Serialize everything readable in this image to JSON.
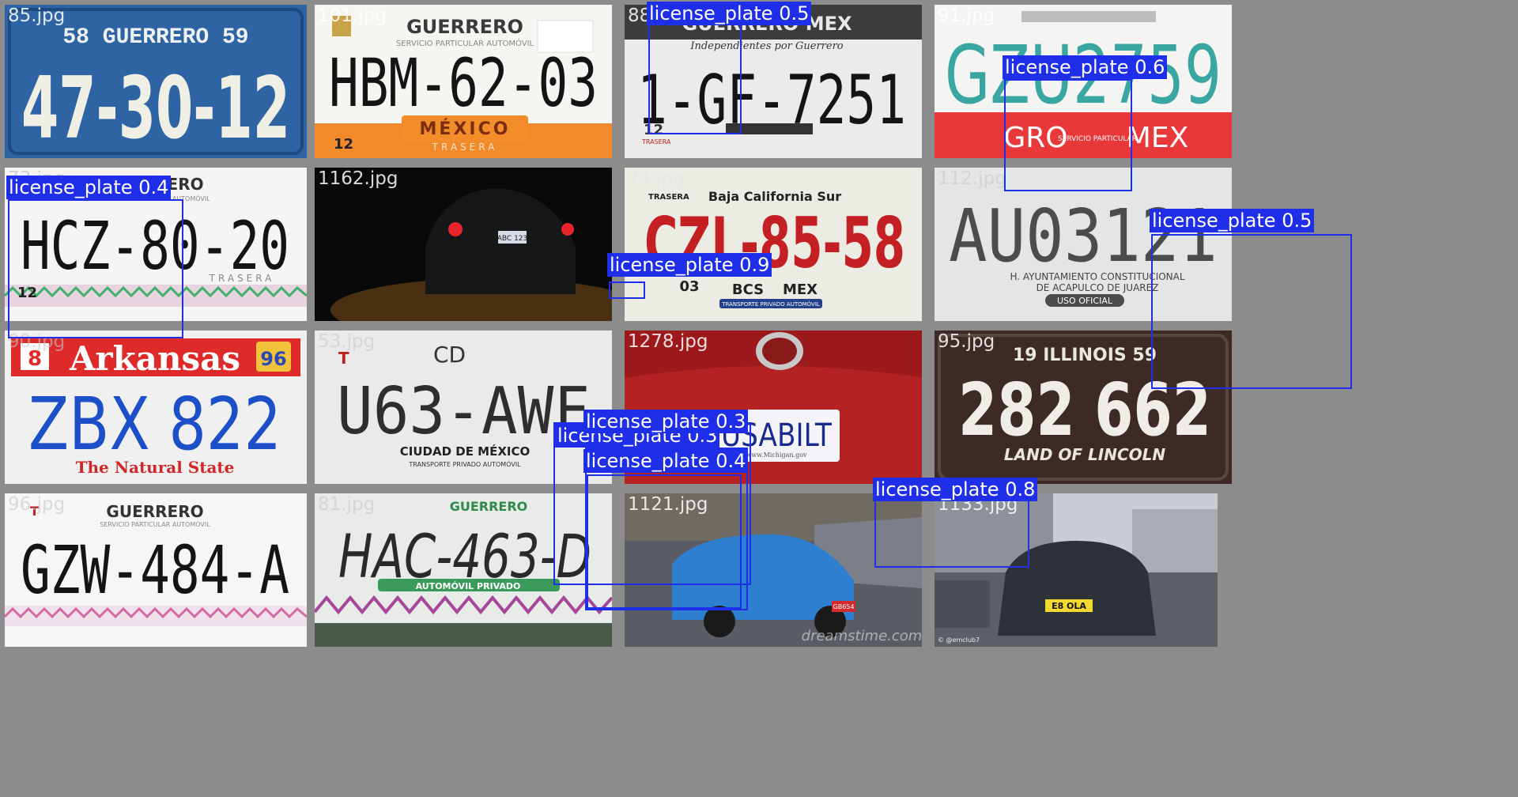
{
  "tiles": [
    {
      "file": "85.jpg",
      "top_text": "58 GUERRERO 59",
      "main_text": "47-30-12"
    },
    {
      "file": "101.jpg",
      "top_text": "GUERRERO",
      "sub_text": "SERVICIO PARTICULAR AUTOMÓVIL",
      "main_text": "HBM-62-03",
      "bottom_text": "MÉXICO",
      "bottom_small": "TRASERA",
      "corner_num": "12"
    },
    {
      "file": "880.jpg",
      "top_text": "GUERRERO MEX",
      "sub_text": "Independientes por Guerrero",
      "main_text": "1-GF-7251",
      "corner_num": "12",
      "corner_small": "TRASERA"
    },
    {
      "file": "91.jpg",
      "main_text": "GZU2759",
      "bottom_text": "GRO",
      "bottom_mid": "SERVICIO PARTICULAR",
      "bottom_right": "MEX"
    },
    {
      "file": "73.jpg",
      "top_text": "GUERRERO",
      "sub_text": "SERVICIO PARTICULAR AUTOMÓVIL",
      "main_text": "HCZ-80-20",
      "bottom_small": "TRASERA",
      "corner_num": "12"
    },
    {
      "file": "1162.jpg",
      "plate_text": "ABC 123"
    },
    {
      "file": "74.jpg",
      "corner_small": "TRASERA",
      "top_text": "Baja California Sur",
      "main_text": "CZL-85-58",
      "left_num": "03",
      "mid_text": "BCS",
      "right_text": "MEX",
      "bottom_text": "TRANSPORTE PRIVADO AUTOMÓVIL"
    },
    {
      "file": "112.jpg",
      "main_text": "AU03121",
      "line1": "H. AYUNTAMIENTO CONSTITUCIONAL",
      "line2": "DE ACAPULCO DE JUAREZ",
      "badge": "USO OFICIAL"
    },
    {
      "file": "90.jpg",
      "top_text": "Arkansas",
      "year": "96",
      "main_text": "ZBX 822",
      "bottom_text": "The Natural State"
    },
    {
      "file": "53.jpg",
      "corner_small": "T",
      "top_text": "CD",
      "main_text": "U63-AWF",
      "bottom_text": "CIUDAD DE MÉXICO",
      "bottom_small": "TRANSPORTE PRIVADO AUTOMÓVIL"
    },
    {
      "file": "1278.jpg",
      "plate_text": "USABILT",
      "plate_small": "www.Michigan.gov"
    },
    {
      "file": "95.jpg",
      "top_text": "19 ILLINOIS 59",
      "main_text": "282 662",
      "bottom_text": "LAND OF LINCOLN"
    },
    {
      "file": "96.jpg",
      "corner_small": "T",
      "top_text": "GUERRERO",
      "sub_text": "SERVICIO PARTICULAR AUTOMÓVIL",
      "main_text": "GZW-484-A"
    },
    {
      "file": "81.jpg",
      "top_text": "GUERRERO",
      "main_text": "HAC-463-D",
      "bottom_text": "AUTOMÓVIL PRIVADO"
    },
    {
      "file": "1121.jpg",
      "watermark": "dreamstime.com",
      "plate_text": "GB654"
    },
    {
      "file": "1133.jpg",
      "plate_text": "E8 OLA",
      "credit": "© @emclub7"
    }
  ],
  "detections": [
    {
      "tile": 1,
      "label": "license_plate 0.5"
    },
    {
      "tile": 2,
      "label": "license_plate 0.6"
    },
    {
      "tile": 4,
      "label": "license_plate 0.4"
    },
    {
      "tile": 5,
      "label": "license_plate 0.9"
    },
    {
      "tile": 7,
      "label": "license_plate 0.5"
    },
    {
      "tile": 9,
      "label": "license_plate 0.3"
    },
    {
      "tile": 9,
      "label": "license_plate 0.3"
    },
    {
      "tile": 9,
      "label": "license_plate 0.4"
    },
    {
      "tile": 10,
      "label": "license_plate 0.8"
    }
  ],
  "colors": {
    "box": "#1f2ee8",
    "label_bg": "#1f2ee8",
    "label_text": "#ffffff",
    "grid_bg": "#8c8c8c"
  }
}
